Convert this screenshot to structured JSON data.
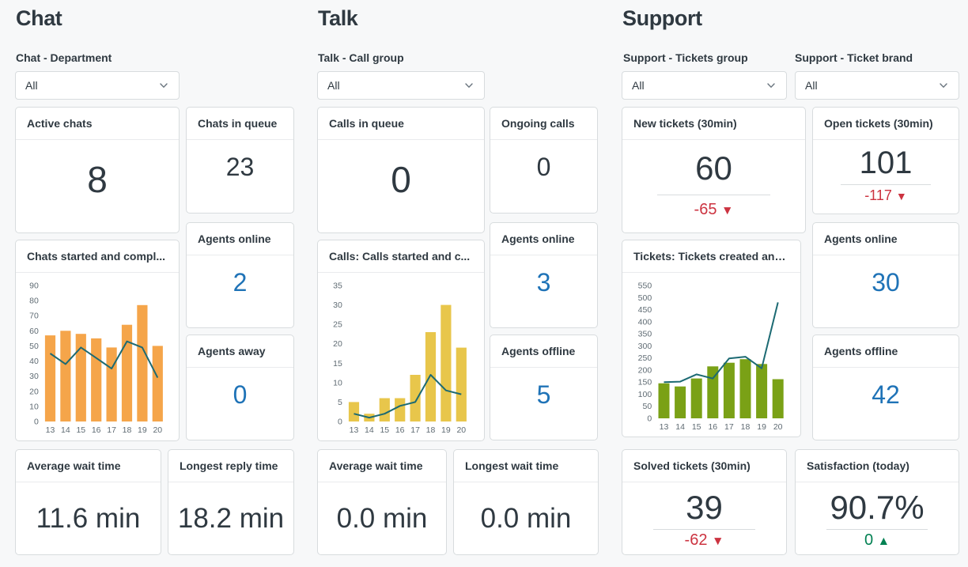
{
  "colors": {
    "page_bg": "#f7f8f9",
    "card_bg": "#ffffff",
    "card_border": "#d8dcde",
    "text_dark": "#2f3941",
    "text_muted": "#5f6b73",
    "blue": "#1f73b7",
    "negative": "#cc3340",
    "positive": "#038153",
    "chat_bar": "#f5a54a",
    "talk_bar": "#e8c64b",
    "support_bar": "#7aa116",
    "line": "#1c6a73"
  },
  "icons": {
    "chevron_down": "⌄",
    "arrow_down": "▼",
    "arrow_up": "▲"
  },
  "chat": {
    "title": "Chat",
    "filter": {
      "label": "Chat - Department",
      "value": "All"
    },
    "cards": {
      "active_chats": {
        "title": "Active chats",
        "value": "8"
      },
      "chats_in_queue": {
        "title": "Chats in queue",
        "value": "23"
      },
      "chart": {
        "title": "Chats started and compl..."
      },
      "agents_online": {
        "title": "Agents online",
        "value": "2"
      },
      "agents_away": {
        "title": "Agents away",
        "value": "0"
      },
      "average_wait_time": {
        "title": "Average wait time",
        "value": "11.6 min"
      },
      "longest_reply_time": {
        "title": "Longest reply time",
        "value": "18.2 min"
      }
    }
  },
  "talk": {
    "title": "Talk",
    "filter": {
      "label": "Talk - Call group",
      "value": "All"
    },
    "cards": {
      "calls_in_queue": {
        "title": "Calls in queue",
        "value": "0"
      },
      "ongoing_calls": {
        "title": "Ongoing calls",
        "value": "0"
      },
      "chart": {
        "title": "Calls: Calls started and c..."
      },
      "agents_online": {
        "title": "Agents online",
        "value": "3"
      },
      "agents_offline": {
        "title": "Agents offline",
        "value": "5"
      },
      "average_wait_time": {
        "title": "Average wait time",
        "value": "0.0 min"
      },
      "longest_wait_time": {
        "title": "Longest wait time",
        "value": "0.0 min"
      }
    }
  },
  "support": {
    "title": "Support",
    "filters": {
      "tickets_group": {
        "label": "Support - Tickets group",
        "value": "All"
      },
      "ticket_brand": {
        "label": "Support - Ticket brand",
        "value": "All"
      }
    },
    "cards": {
      "new_tickets": {
        "title": "New tickets (30min)",
        "value": "60",
        "delta": {
          "value": "-65",
          "direction": "down"
        }
      },
      "open_tickets": {
        "title": "Open tickets (30min)",
        "value": "101",
        "delta": {
          "value": "-117",
          "direction": "down"
        }
      },
      "chart": {
        "title": "Tickets: Tickets created and ..."
      },
      "agents_online": {
        "title": "Agents online",
        "value": "30"
      },
      "agents_offline": {
        "title": "Agents offline",
        "value": "42"
      },
      "solved_tickets": {
        "title": "Solved tickets (30min)",
        "value": "39",
        "delta": {
          "value": "-62",
          "direction": "down"
        }
      },
      "satisfaction": {
        "title": "Satisfaction (today)",
        "value": "90.7%",
        "delta": {
          "value": "0",
          "direction": "up"
        }
      }
    }
  },
  "chart_data": [
    {
      "type": "bar",
      "title": "Chats started and compl...",
      "categories": [
        "13",
        "14",
        "15",
        "16",
        "17",
        "18",
        "19",
        "20"
      ],
      "series": [
        {
          "name": "bars",
          "type": "bar",
          "color": "#f5a54a",
          "values": [
            57,
            60,
            58,
            55,
            49,
            64,
            77,
            50
          ]
        },
        {
          "name": "line",
          "type": "line",
          "color": "#1c6a73",
          "values": [
            45,
            38,
            49,
            42,
            35,
            53,
            49,
            29
          ]
        }
      ],
      "ylim": [
        0,
        90
      ],
      "ytick_step": 10,
      "grid": false,
      "legend": false,
      "xlabel": "",
      "ylabel": ""
    },
    {
      "type": "bar",
      "title": "Calls: Calls started and c...",
      "categories": [
        "13",
        "14",
        "15",
        "16",
        "17",
        "18",
        "19",
        "20"
      ],
      "series": [
        {
          "name": "bars",
          "type": "bar",
          "color": "#e8c64b",
          "values": [
            5,
            2,
            6,
            6,
            12,
            23,
            30,
            19
          ]
        },
        {
          "name": "line",
          "type": "line",
          "color": "#1c6a73",
          "values": [
            2,
            1,
            2,
            4,
            5,
            12,
            8,
            7
          ]
        }
      ],
      "ylim": [
        0,
        35
      ],
      "ytick_step": 5,
      "grid": false,
      "legend": false,
      "xlabel": "",
      "ylabel": ""
    },
    {
      "type": "bar",
      "title": "Tickets: Tickets created and ...",
      "categories": [
        "13",
        "14",
        "15",
        "16",
        "17",
        "18",
        "19",
        "20"
      ],
      "series": [
        {
          "name": "bars",
          "type": "bar",
          "color": "#7aa116",
          "values": [
            145,
            132,
            165,
            215,
            230,
            245,
            225,
            162
          ]
        },
        {
          "name": "line",
          "type": "line",
          "color": "#1c6a73",
          "values": [
            150,
            152,
            182,
            165,
            248,
            255,
            207,
            480
          ]
        }
      ],
      "ylim": [
        0,
        550
      ],
      "ytick_step": 50,
      "grid": false,
      "legend": false,
      "xlabel": "",
      "ylabel": ""
    }
  ]
}
